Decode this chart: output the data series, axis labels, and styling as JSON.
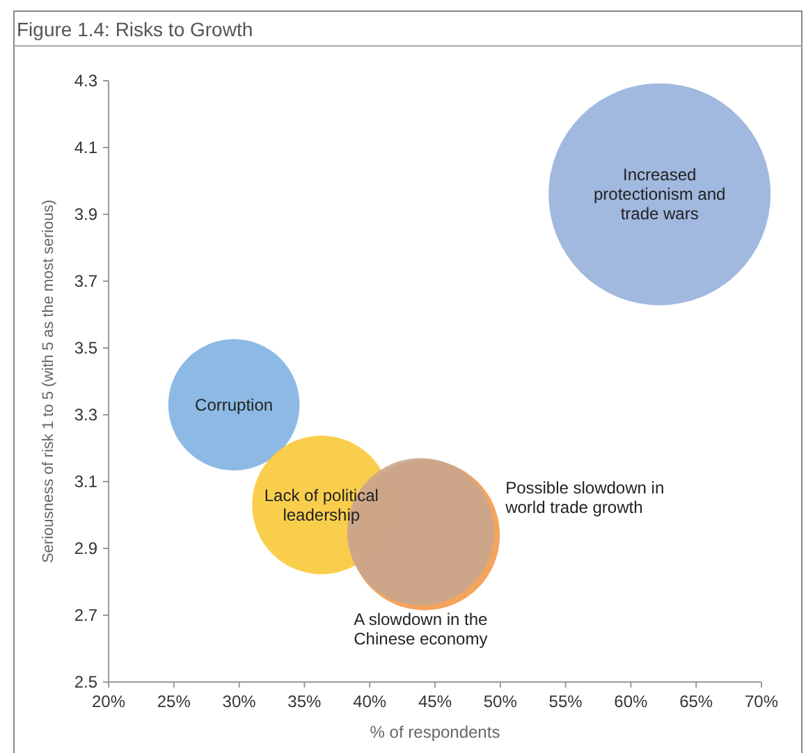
{
  "chart_data": {
    "type": "bubble",
    "title": "Figure 1.4: Risks to Growth",
    "xlabel": "% of respondents",
    "ylabel": "Seriousness of risk 1 to 5 (with 5 as the most serious)",
    "series": [
      {
        "name": "Increased protectionism and trade wars",
        "color": "#97b0dc",
        "x": [
          62.2
        ],
        "values": [
          3.96
        ],
        "sizes": [
          1
        ]
      },
      {
        "name": "Corruption",
        "color": "#80b2e2",
        "x": [
          29.6
        ],
        "values": [
          3.33
        ],
        "sizes": [
          0.35
        ]
      },
      {
        "name": "Lack of political leadership",
        "color": "#f9c93a",
        "x": [
          36.3
        ],
        "values": [
          3.03
        ],
        "sizes": [
          0.39
        ]
      },
      {
        "name": "Possible slowdown in world trade growth",
        "color": "#f49a4c",
        "x": [
          44.2
        ],
        "values": [
          2.94
        ],
        "sizes": [
          0.46
        ]
      },
      {
        "name": "A slowdown in the Chinese economy",
        "color": "#c9a68e",
        "x": [
          43.9
        ],
        "values": [
          2.95
        ],
        "sizes": [
          0.44
        ]
      }
    ],
    "xlim": [
      20,
      70
    ],
    "ylim": [
      2.5,
      4.3
    ],
    "xticks": [
      {
        "value": 20,
        "label": "20%"
      },
      {
        "value": 25,
        "label": "25%"
      },
      {
        "value": 30,
        "label": "30%"
      },
      {
        "value": 35,
        "label": "35%"
      },
      {
        "value": 40,
        "label": "40%"
      },
      {
        "value": 45,
        "label": "45%"
      },
      {
        "value": 50,
        "label": "50%"
      },
      {
        "value": 55,
        "label": "55%"
      },
      {
        "value": 60,
        "label": "60%"
      },
      {
        "value": 65,
        "label": "65%"
      },
      {
        "value": 70,
        "label": "70%"
      }
    ],
    "yticks": [
      2.5,
      2.7,
      2.9,
      3.1,
      3.3,
      3.5,
      3.7,
      3.9,
      4.1,
      4.3
    ],
    "grid": false
  }
}
